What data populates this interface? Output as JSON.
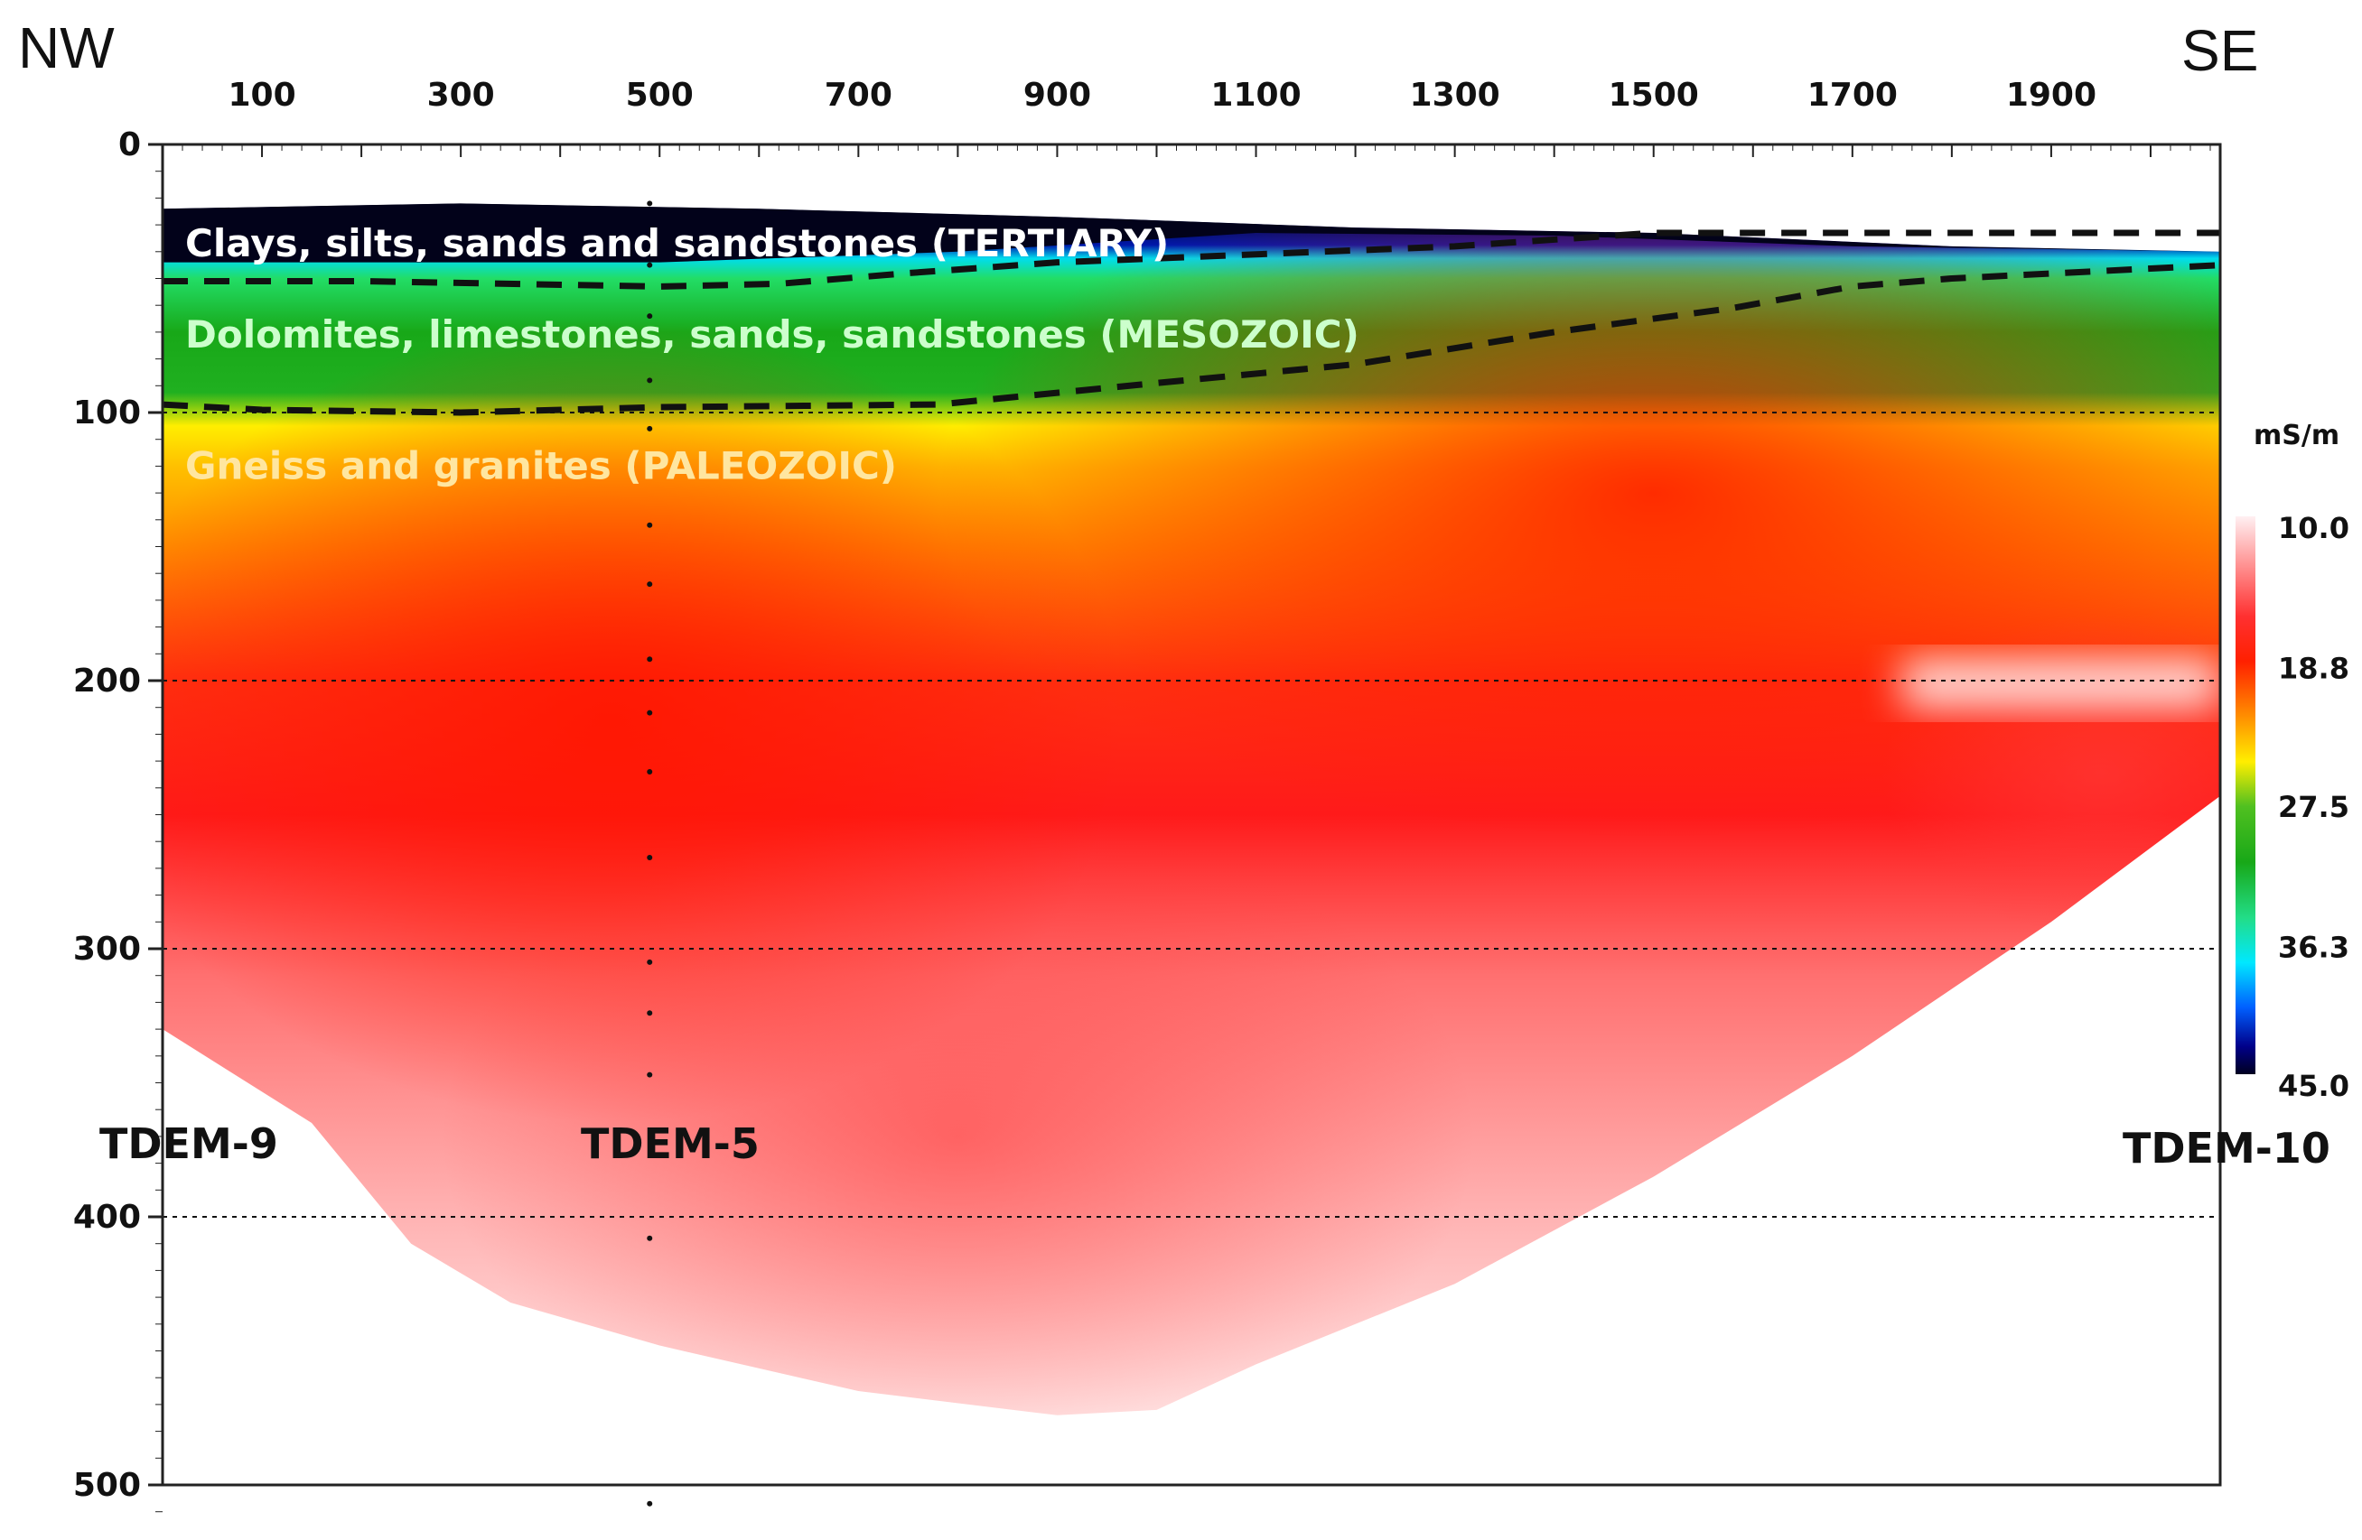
{
  "chart_data": {
    "type": "heatmap",
    "title": "",
    "direction_left": "NW",
    "direction_right": "SE",
    "xlabel": "",
    "ylabel": "",
    "x_ticks": [
      "100",
      "300",
      "500",
      "700",
      "900",
      "1100",
      "1300",
      "1500",
      "1700",
      "1900"
    ],
    "x_tick_values": [
      100,
      300,
      500,
      700,
      900,
      1100,
      1300,
      1500,
      1700,
      1900
    ],
    "xlim": [
      0,
      2070
    ],
    "y_ticks": [
      "0",
      "100",
      "200",
      "300",
      "400",
      "500"
    ],
    "y_tick_values": [
      0,
      100,
      200,
      300,
      400,
      500
    ],
    "ylim": [
      0,
      500
    ],
    "y_inverted": true,
    "colorbar": {
      "unit": "mS/m",
      "ticks": [
        "10.0",
        "18.8",
        "27.5",
        "36.3",
        "45.0"
      ],
      "tick_values": [
        10.0,
        18.8,
        27.5,
        36.3,
        45.0
      ],
      "colors": [
        "#fff0f2",
        "#ff3030",
        "#ff1a00",
        "#ff8a00",
        "#ffee00",
        "#18a818",
        "#22dd66",
        "#00e8ff",
        "#0060ff",
        "#00008a",
        "#000020"
      ]
    },
    "layers": [
      {
        "label": "Clays, silts, sands and sandstones (TERTIARY)",
        "color": "#ffffff",
        "x": 20,
        "depth": 37
      },
      {
        "label": "Dolomites, limestones, sands, sandstones (MESOZOIC)",
        "color": "#ccffcc",
        "x": 20,
        "depth": 71
      },
      {
        "label": "Gneiss and granites (PALEOZOIC)",
        "color": "#ffe6a0",
        "x": 20,
        "depth": 120
      }
    ],
    "boundaries": [
      {
        "name": "Tertiary base",
        "x": [
          0,
          200,
          500,
          620,
          750,
          900,
          1100,
          1300,
          1500,
          2070
        ],
        "depth": [
          51,
          51,
          53,
          52,
          48,
          44,
          41,
          38,
          33,
          33
        ]
      },
      {
        "name": "Mesozoic base",
        "x": [
          0,
          100,
          300,
          500,
          780,
          1000,
          1200,
          1400,
          1580,
          1700,
          1800,
          2070
        ],
        "depth": [
          97,
          99,
          100,
          98,
          97,
          89,
          82,
          70,
          61,
          53,
          50,
          45
        ]
      }
    ],
    "stations": [
      {
        "label": "TDEM-9",
        "x": 0
      },
      {
        "label": "TDEM-5",
        "x": 490
      },
      {
        "label": "TDEM-10",
        "x": 2070
      }
    ],
    "sounding_line": {
      "x": 490,
      "depths": [
        22,
        45,
        64,
        88,
        106,
        142,
        164,
        192,
        212,
        234,
        266,
        305,
        324,
        347,
        408,
        507
      ]
    },
    "grid_y": [
      100,
      200,
      300,
      400,
      500
    ]
  }
}
